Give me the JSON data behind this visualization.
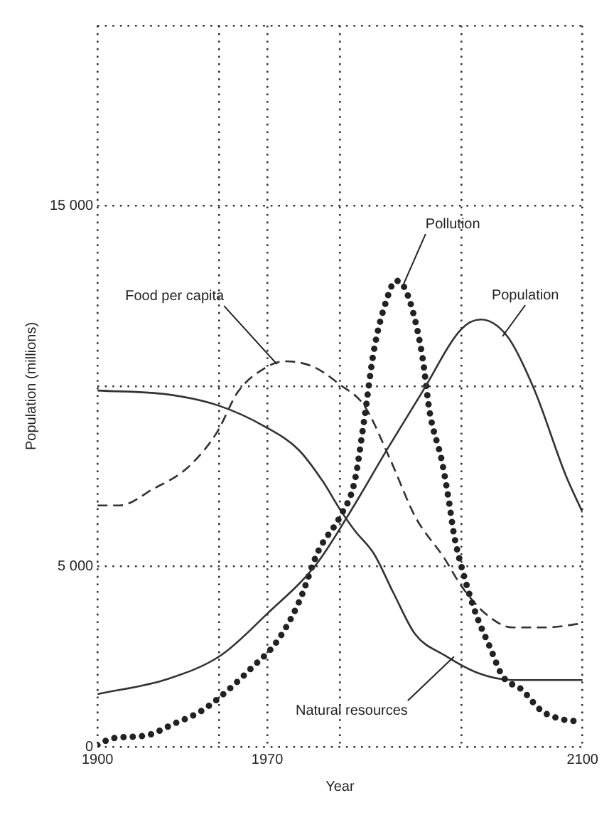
{
  "chart_data": {
    "type": "line",
    "xlabel": "Year",
    "ylabel": "Population (millions)",
    "xlim": [
      1900,
      2100
    ],
    "xticks": [
      1900,
      {
        "value": 1950,
        "label": null
      },
      1970,
      {
        "value": 2000,
        "label": null
      },
      {
        "value": 2050,
        "label": null
      },
      2100
    ],
    "ylim": [
      0,
      20000
    ],
    "yticks": [
      0,
      {
        "value": 5000,
        "label": "5 000"
      },
      {
        "value": 10000,
        "label": null
      },
      {
        "value": 15000,
        "label": "15 000"
      },
      {
        "value": 20000,
        "label": null
      }
    ],
    "grid": true,
    "legend": false,
    "marker": "none",
    "series": [
      {
        "color": "#333333",
        "line_style": "solid",
        "x": [
          1900,
          1929,
          1951,
          1970,
          1990,
          2003,
          2020,
          2034,
          2050,
          2058,
          2069,
          2080,
          2093,
          2100
        ],
        "values": [
          1460,
          1880,
          2540,
          3690,
          5040,
          6380,
          8310,
          9850,
          11580,
          11850,
          11380,
          9920,
          7540,
          6500
        ]
      },
      {
        "color": "#222222",
        "line_style": "dotted",
        "x": [
          1900,
          1906,
          1920,
          1931,
          1943,
          1954,
          1963,
          1974,
          1983,
          1991,
          2000,
          2006,
          2010,
          2014,
          2019,
          2023,
          2026,
          2030,
          2034,
          2037,
          2042,
          2045,
          2047,
          2051,
          2056,
          2062,
          2067,
          2075,
          2083,
          2091,
          2100
        ],
        "values": [
          40,
          230,
          310,
          620,
          1000,
          1580,
          2150,
          2920,
          4000,
          5420,
          6380,
          7350,
          9080,
          11000,
          12350,
          12920,
          12800,
          12080,
          10800,
          9270,
          7920,
          6770,
          5880,
          4770,
          3690,
          2730,
          1960,
          1580,
          1000,
          770,
          690
        ]
      },
      {
        "color": "#333333",
        "line_style": "dashed",
        "x": [
          1900,
          1909,
          1923,
          1937,
          1949,
          1958,
          1969,
          1977,
          1989,
          2000,
          2010,
          2021,
          2031,
          2043,
          2050,
          2060,
          2071,
          2085,
          2100
        ],
        "values": [
          6690,
          6690,
          7150,
          7730,
          8690,
          9850,
          10500,
          10690,
          10540,
          10040,
          9460,
          7920,
          6380,
          5230,
          4460,
          3690,
          3310,
          3310,
          3420
        ]
      },
      {
        "color": "#333333",
        "line_style": "solid",
        "x": [
          1900,
          1929,
          1950,
          1969,
          1983,
          1993,
          2000,
          2006,
          2014,
          2022,
          2031,
          2043,
          2057,
          2071,
          2100
        ],
        "values": [
          9880,
          9770,
          9460,
          8880,
          8230,
          7350,
          6580,
          6000,
          5350,
          4270,
          3120,
          2540,
          2040,
          1850,
          1850
        ]
      }
    ],
    "annotations": [
      {
        "text": "Pollution",
        "x": 2026,
        "y": 12800
      },
      {
        "text": "Food per capita",
        "x": 1974,
        "y": 10610
      },
      {
        "text": "Population",
        "x": 2067,
        "y": 11380
      },
      {
        "text": "Natural resources",
        "x": 2047,
        "y": 2500
      }
    ]
  }
}
